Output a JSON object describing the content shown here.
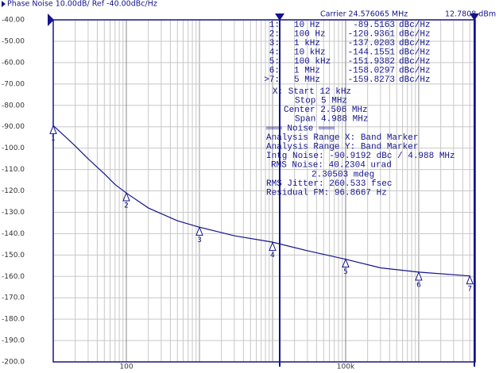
{
  "chart_data": {
    "type": "line",
    "title": "Phase Noise 10.00dB/ Ref -40.00dBc/Hz",
    "carrier": "Carrier 24.576065 MHz",
    "power": "12.7808 dBm",
    "log_x": true,
    "grid": true,
    "color": "#14148c",
    "xlim": [
      10,
      5920000
    ],
    "xticks": [
      {
        "value": 100,
        "label": "100"
      },
      {
        "value": 100000,
        "label": "100k"
      }
    ],
    "ylim": [
      -200,
      -40
    ],
    "yticks": [
      {
        "value": -40,
        "label": "-40.00"
      },
      {
        "value": -50,
        "label": "-50.00"
      },
      {
        "value": -60,
        "label": "-60.00"
      },
      {
        "value": -70,
        "label": "-70.00"
      },
      {
        "value": -80,
        "label": "-80.00"
      },
      {
        "value": -90,
        "label": "-90.00"
      },
      {
        "value": -100,
        "label": "-100.0"
      },
      {
        "value": -110,
        "label": "-110.0"
      },
      {
        "value": -120,
        "label": "-120.0"
      },
      {
        "value": -130,
        "label": "-130.0"
      },
      {
        "value": -140,
        "label": "-140.0"
      },
      {
        "value": -150,
        "label": "-150.0"
      },
      {
        "value": -160,
        "label": "-160.0"
      },
      {
        "value": -170,
        "label": "-170.0"
      },
      {
        "value": -180,
        "label": "-180.0"
      },
      {
        "value": -190,
        "label": "-190.0"
      },
      {
        "value": -200,
        "label": "-200.0"
      }
    ],
    "x": [
      10,
      15,
      20,
      30,
      50,
      70,
      100,
      200,
      500,
      1000,
      3000,
      10000,
      30000,
      100000,
      300000,
      1000000,
      5000000
    ],
    "values": [
      -89.5,
      -95,
      -99,
      -105,
      -112,
      -117,
      -121,
      -128,
      -134,
      -137,
      -141,
      -144,
      -148,
      -152,
      -156,
      -158,
      -159.8
    ],
    "markers": [
      {
        "label": "1:",
        "id": "1",
        "freq": "10 Hz",
        "x": 10,
        "value": -89.5163,
        "unit": "dBc/Hz"
      },
      {
        "label": "2:",
        "id": "2",
        "freq": "100 Hz",
        "x": 100,
        "value": -120.9361,
        "unit": "dBc/Hz"
      },
      {
        "label": "3:",
        "id": "3",
        "freq": "1 kHz",
        "x": 1000,
        "value": -137.0203,
        "unit": "dBc/Hz"
      },
      {
        "label": "4:",
        "id": "4",
        "freq": "10 kHz",
        "x": 10000,
        "value": -144.1551,
        "unit": "dBc/Hz"
      },
      {
        "label": "5:",
        "id": "5",
        "freq": "100 kHz",
        "x": 100000,
        "value": -151.9382,
        "unit": "dBc/Hz"
      },
      {
        "label": "6:",
        "id": "6",
        "freq": "1 MHz",
        "x": 1000000,
        "value": -158.0297,
        "unit": "dBc/Hz"
      },
      {
        "label": ">7:",
        "id": "7",
        "freq": "5 MHz",
        "x": 5000000,
        "value": -159.8273,
        "unit": "dBc/Hz"
      }
    ],
    "info": [
      "X: Start 12 kHz",
      "Stop 5 MHz",
      "Center 2.506 MHz",
      "Span 4.988 MHz",
      "═══ Noise ═══",
      "Analysis Range X: Band Marker",
      "Analysis Range Y: Band Marker",
      "Intg Noise: -90.9192 dBc / 4.988 MHz",
      "RMS Noise: 40.2304 urad",
      "2.30503 mdeg",
      "RMS Jitter: 260.533 fsec",
      "Residual FM: 96.8667 Hz"
    ]
  }
}
